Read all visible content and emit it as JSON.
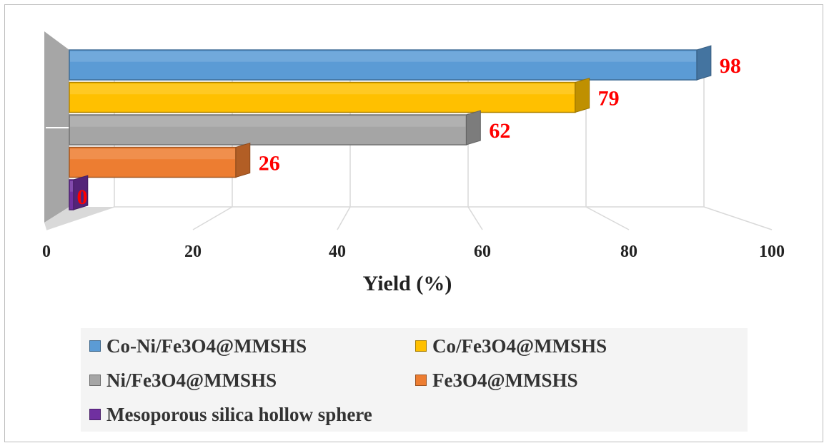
{
  "chart_data": {
    "type": "bar",
    "orientation": "horizontal",
    "style": "3d",
    "categories": [
      "Co-Ni/Fe3O4@MMSHS",
      "Co/Fe3O4@MMSHS",
      "Ni/Fe3O4@MMSHS",
      "Fe3O4@MMSHS",
      "Mesoporous silica hollow sphere"
    ],
    "values": [
      98,
      79,
      62,
      26,
      0
    ],
    "data_labels": [
      "98",
      "79",
      "62",
      "26",
      "0"
    ],
    "colors": [
      "#5b9bd5",
      "#ffc000",
      "#a5a5a5",
      "#ed7d31",
      "#7030a0"
    ],
    "xlabel": "Yield (%)",
    "ylabel": "",
    "xlim": [
      0,
      100
    ],
    "xticks": [
      0,
      20,
      40,
      60,
      80,
      100
    ],
    "xtick_labels": [
      "0",
      "20",
      "40",
      "60",
      "80",
      "100"
    ],
    "data_label_color": "#ff0000",
    "grid": true,
    "legend_position": "bottom",
    "legend": [
      "Co-Ni/Fe3O4@MMSHS",
      "Co/Fe3O4@MMSHS",
      "Ni/Fe3O4@MMSHS",
      "Fe3O4@MMSHS",
      "Mesoporous silica hollow sphere"
    ]
  }
}
